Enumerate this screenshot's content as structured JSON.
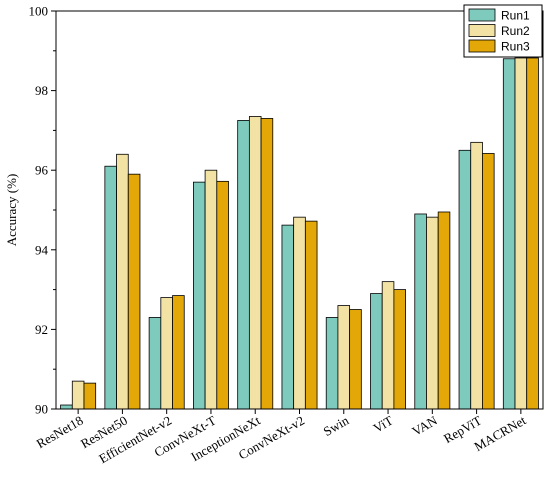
{
  "chart_data": {
    "type": "bar",
    "title": "",
    "xlabel": "",
    "ylabel": "Accuracy (%)",
    "ylim": [
      90,
      100
    ],
    "yticks": [
      90,
      92,
      94,
      96,
      98,
      100
    ],
    "grid": false,
    "legend_position": "top-right",
    "categories": [
      "ResNet18",
      "ResNet50",
      "EfficientNet-v2",
      "ConvNeXt-T",
      "InceptionNeXt",
      "ConvNeXt-v2",
      "Swin",
      "ViT",
      "VAN",
      "RepViT",
      "MACRNet"
    ],
    "series": [
      {
        "name": "Run1",
        "color": "#7ecbbe",
        "values": [
          90.1,
          96.1,
          92.3,
          95.7,
          97.25,
          94.62,
          92.3,
          92.9,
          94.9,
          96.5,
          98.8
        ]
      },
      {
        "name": "Run2",
        "color": "#f2e2a4",
        "values": [
          90.7,
          96.4,
          92.8,
          96.0,
          97.35,
          94.82,
          92.6,
          93.2,
          94.82,
          96.7,
          98.82
        ]
      },
      {
        "name": "Run3",
        "color": "#e3a807",
        "values": [
          90.65,
          95.9,
          92.85,
          95.72,
          97.3,
          94.72,
          92.5,
          93.0,
          94.95,
          96.42,
          98.82
        ]
      }
    ]
  }
}
